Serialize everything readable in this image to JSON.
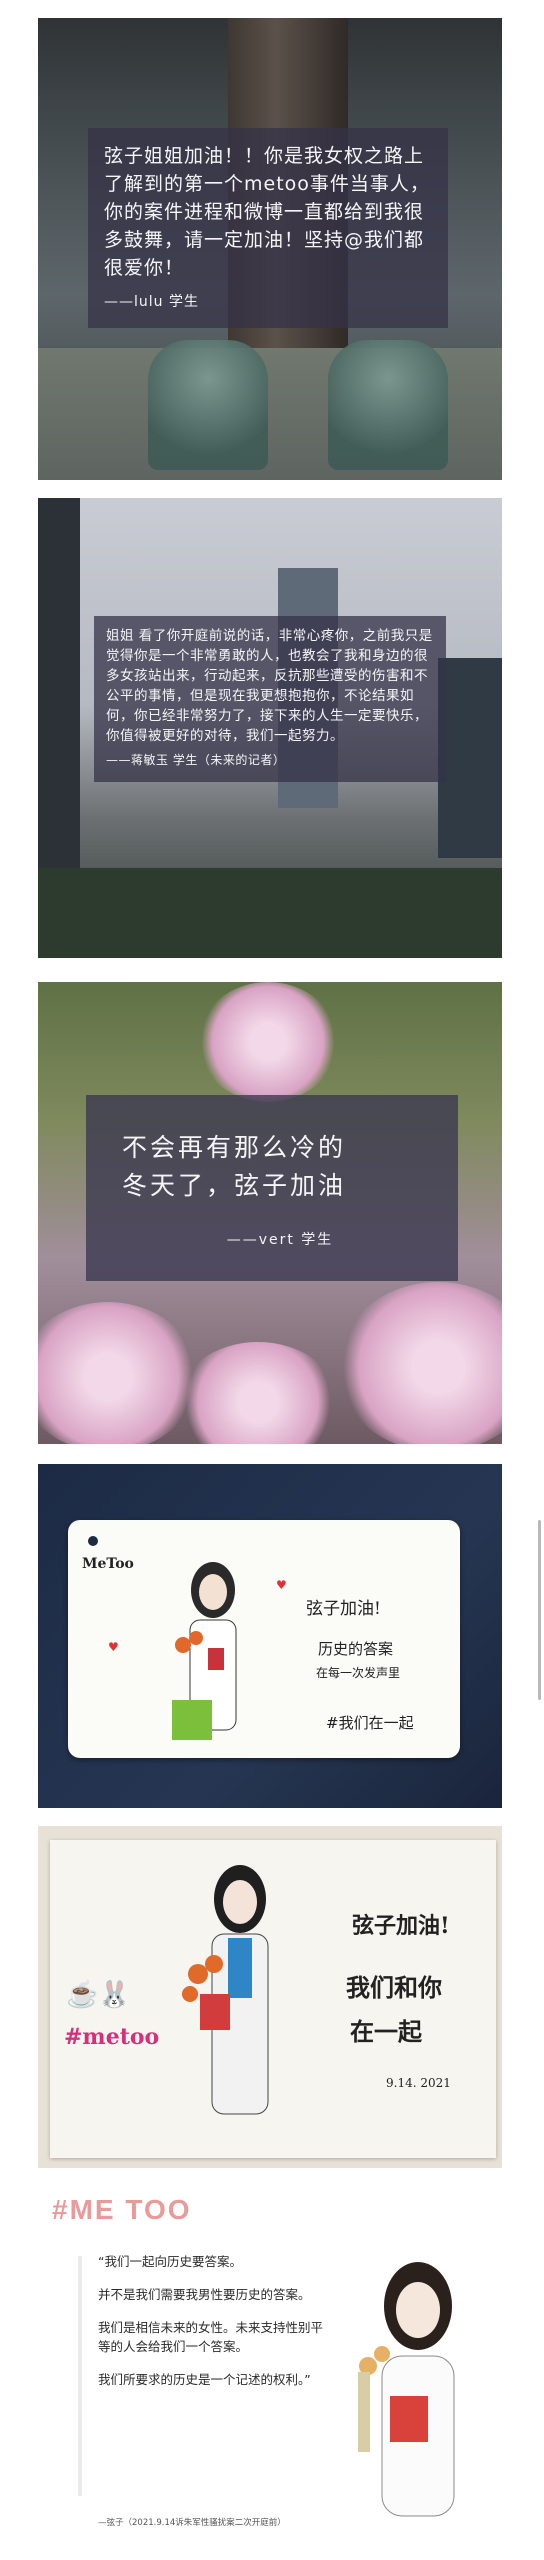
{
  "panel1": {
    "message": "弦子姐姐加油！！你是我女权之路上了解到的第一个metoo事件当事人，你的案件进程和微博一直都给到我很多鼓舞，请一定加油！坚持@我们都很爱你！",
    "signature": "——lulu 学生"
  },
  "panel2": {
    "message": "姐姐 看了你开庭前说的话，非常心疼你，之前我只是觉得你是一个非常勇敢的人，也教会了我和身边的很多女孩站出来，行动起来，反抗那些遭受的伤害和不公平的事情，但是现在我更想抱抱你，不论结果如何，你已经非常努力了，接下来的人生一定要快乐，你值得被更好的对待，我们一起努力。",
    "signature": "——蒋敏玉 学生（未来的记者）"
  },
  "panel3": {
    "line1": "不会再有那么冷的",
    "line2": "冬天了，弦子加油",
    "signature": "——vert 学生"
  },
  "panel4": {
    "card_brand": "MeToo",
    "line1": "弦子加油!",
    "line2": "历史的答案",
    "line3": "在每一次发声里",
    "line4": "#我们在一起"
  },
  "panel5": {
    "line1": "弦子加油!",
    "line2": "我们和你",
    "line3": "在一起",
    "date": "9.14. 2021",
    "tag": "#metoo"
  },
  "panel6": {
    "title": "#ME TOO",
    "p1": "“我们一起向历史要答案。",
    "p2": "并不是我们需要我男性要历史的答案。",
    "p3": "我们是相信未来的女性。未来支持性别平等的人会给我们一个答案。",
    "p4": "我们所要求的历史是一个记述的权利。”",
    "footer": "—弦子（2021.9.14诉朱军性骚扰案二次开庭前）"
  },
  "colors": {
    "overlay": "#343248",
    "title_pink": "#e99a9a"
  }
}
